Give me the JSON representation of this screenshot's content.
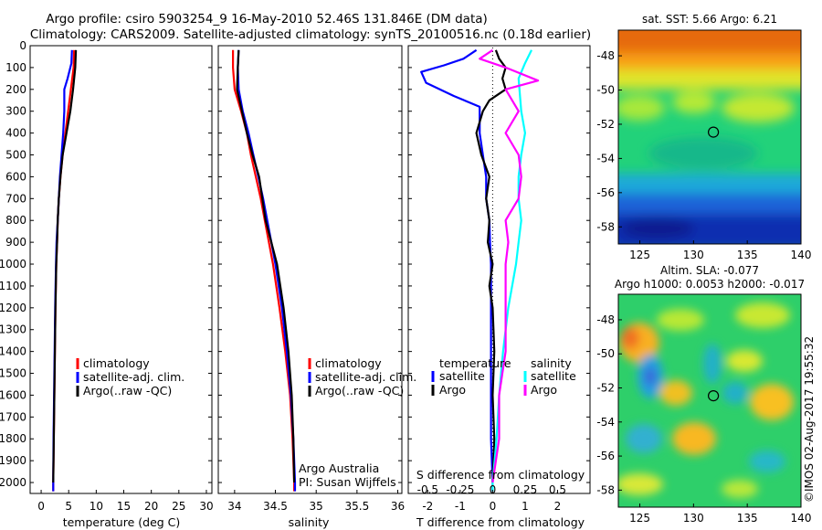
{
  "title": {
    "line1": "Argo profile: csiro 5903254_9 16-May-2010 52.46S 131.846E (DM data)",
    "line2": "Climatology: CARS2009. Satellite-adjusted climatology: synTS_20100516.nc (0.18d earlier)"
  },
  "colors": {
    "climatology": "#ff0000",
    "satellite": "#0000ff",
    "argo": "#000000",
    "salinity_satellite": "#00ffff",
    "salinity_argo": "#ff00ff",
    "marker": "#000000"
  },
  "depth_ticks": [
    "0",
    "100",
    "200",
    "300",
    "400",
    "500",
    "600",
    "700",
    "800",
    "900",
    "1000",
    "1100",
    "1200",
    "1300",
    "1400",
    "1500",
    "1600",
    "1700",
    "1800",
    "1900",
    "2000"
  ],
  "chart_data": [
    {
      "type": "line",
      "id": "temperature",
      "xlabel": "temperature (deg C)",
      "xlim": [
        -2,
        31
      ],
      "ylim": [
        2050,
        0
      ],
      "xticks": [
        "0",
        "5",
        "10",
        "15",
        "20",
        "25",
        "30"
      ],
      "legend": [
        "climatology",
        "satellite-adj. clim.",
        "Argo(..raw -QC)"
      ],
      "legend_position": "middle-right",
      "series": [
        {
          "name": "climatology",
          "points": [
            [
              6.0,
              20
            ],
            [
              5.9,
              100
            ],
            [
              5.4,
              200
            ],
            [
              4.9,
              300
            ],
            [
              4.4,
              400
            ],
            [
              3.9,
              500
            ],
            [
              3.5,
              600
            ],
            [
              3.2,
              700
            ],
            [
              3.0,
              800
            ],
            [
              2.9,
              900
            ],
            [
              2.75,
              1000
            ],
            [
              2.6,
              1200
            ],
            [
              2.5,
              1400
            ],
            [
              2.4,
              1600
            ],
            [
              2.3,
              1800
            ],
            [
              2.2,
              2000
            ],
            [
              2.2,
              2040
            ]
          ]
        },
        {
          "name": "satellite-adj. clim.",
          "points": [
            [
              5.6,
              20
            ],
            [
              5.5,
              80
            ],
            [
              4.8,
              150
            ],
            [
              4.2,
              200
            ],
            [
              4.2,
              300
            ],
            [
              4.0,
              400
            ],
            [
              3.7,
              500
            ],
            [
              3.4,
              600
            ],
            [
              3.2,
              700
            ],
            [
              3.0,
              800
            ],
            [
              2.8,
              900
            ],
            [
              2.7,
              1000
            ],
            [
              2.55,
              1200
            ],
            [
              2.45,
              1400
            ],
            [
              2.35,
              1600
            ],
            [
              2.25,
              1800
            ],
            [
              2.2,
              2000
            ],
            [
              2.2,
              2040
            ]
          ]
        },
        {
          "name": "Argo(..raw -QC)",
          "points": [
            [
              6.3,
              20
            ],
            [
              6.2,
              100
            ],
            [
              5.8,
              200
            ],
            [
              5.3,
              300
            ],
            [
              4.6,
              400
            ],
            [
              3.9,
              500
            ],
            [
              3.5,
              600
            ],
            [
              3.2,
              700
            ],
            [
              3.0,
              800
            ],
            [
              2.9,
              900
            ],
            [
              2.75,
              1000
            ],
            [
              2.6,
              1200
            ],
            [
              2.5,
              1400
            ],
            [
              2.4,
              1600
            ],
            [
              2.3,
              1800
            ],
            [
              2.2,
              2000
            ]
          ]
        }
      ]
    },
    {
      "type": "line",
      "id": "salinity",
      "xlabel": "salinity",
      "xlim": [
        33.8,
        36.05
      ],
      "ylim": [
        2050,
        0
      ],
      "xticks": [
        "34",
        "34.5",
        "35",
        "35.5",
        "36"
      ],
      "legend": [
        "climatology",
        "satellite-adj. clim.",
        "Argo(..raw -QC)"
      ],
      "legend_position": "middle-right",
      "annotation": [
        "Argo Australia",
        "PI: Susan Wijffels"
      ],
      "series": [
        {
          "name": "climatology",
          "points": [
            [
              33.98,
              20
            ],
            [
              33.98,
              100
            ],
            [
              34.0,
              200
            ],
            [
              34.08,
              300
            ],
            [
              34.15,
              400
            ],
            [
              34.2,
              500
            ],
            [
              34.26,
              600
            ],
            [
              34.32,
              700
            ],
            [
              34.37,
              800
            ],
            [
              34.42,
              900
            ],
            [
              34.47,
              1000
            ],
            [
              34.55,
              1200
            ],
            [
              34.62,
              1400
            ],
            [
              34.68,
              1600
            ],
            [
              34.71,
              1800
            ],
            [
              34.73,
              2000
            ],
            [
              34.73,
              2040
            ]
          ]
        },
        {
          "name": "satellite-adj. clim.",
          "points": [
            [
              34.05,
              20
            ],
            [
              34.04,
              100
            ],
            [
              34.05,
              200
            ],
            [
              34.1,
              300
            ],
            [
              34.17,
              400
            ],
            [
              34.23,
              500
            ],
            [
              34.29,
              600
            ],
            [
              34.35,
              700
            ],
            [
              34.4,
              800
            ],
            [
              34.45,
              900
            ],
            [
              34.5,
              1000
            ],
            [
              34.58,
              1200
            ],
            [
              34.64,
              1400
            ],
            [
              34.69,
              1600
            ],
            [
              34.72,
              1800
            ],
            [
              34.74,
              2000
            ],
            [
              34.74,
              2040
            ]
          ]
        },
        {
          "name": "Argo(..raw -QC)",
          "points": [
            [
              34.05,
              20
            ],
            [
              34.04,
              100
            ],
            [
              34.03,
              200
            ],
            [
              34.09,
              300
            ],
            [
              34.15,
              400
            ],
            [
              34.22,
              500
            ],
            [
              34.3,
              600
            ],
            [
              34.34,
              700
            ],
            [
              34.38,
              800
            ],
            [
              34.45,
              900
            ],
            [
              34.52,
              1000
            ],
            [
              34.6,
              1200
            ],
            [
              34.66,
              1400
            ],
            [
              34.7,
              1600
            ],
            [
              34.72,
              1800
            ],
            [
              34.73,
              2000
            ]
          ]
        }
      ]
    },
    {
      "type": "line",
      "id": "difference",
      "xlabel": "T difference from climatology",
      "xlabel2": "S difference from climatology",
      "xlim": [
        -2.6,
        3.0
      ],
      "ylim": [
        2050,
        0
      ],
      "xticks": [
        "-2",
        "-1",
        "0",
        "1",
        "2"
      ],
      "xticks_top": [
        "-0.5",
        "-0.25",
        "0",
        "0.25",
        "0.5"
      ],
      "legend_temperature_title": "temperature",
      "legend_salinity_title": "salinity",
      "legend_temperature": [
        "satellite",
        "Argo"
      ],
      "legend_salinity": [
        "satellite",
        "Argo"
      ],
      "legend_position": "middle",
      "series": [
        {
          "name": "temperature satellite",
          "points": [
            [
              -0.5,
              20
            ],
            [
              -0.9,
              60
            ],
            [
              -1.5,
              90
            ],
            [
              -2.2,
              120
            ],
            [
              -2.05,
              170
            ],
            [
              -1.2,
              230
            ],
            [
              -0.4,
              280
            ],
            [
              -0.4,
              330
            ],
            [
              -0.4,
              400
            ],
            [
              -0.3,
              500
            ],
            [
              -0.2,
              600
            ],
            [
              -0.2,
              700
            ],
            [
              -0.1,
              800
            ],
            [
              -0.08,
              900
            ],
            [
              -0.05,
              1000
            ],
            [
              -0.05,
              1200
            ],
            [
              -0.05,
              1400
            ],
            [
              -0.05,
              1600
            ],
            [
              -0.05,
              1800
            ],
            [
              0.0,
              2000
            ],
            [
              0.0,
              2040
            ]
          ]
        },
        {
          "name": "temperature Argo",
          "points": [
            [
              0.1,
              20
            ],
            [
              0.2,
              60
            ],
            [
              0.4,
              100
            ],
            [
              0.3,
              150
            ],
            [
              0.4,
              200
            ],
            [
              -0.1,
              250
            ],
            [
              -0.3,
              300
            ],
            [
              -0.5,
              400
            ],
            [
              -0.35,
              500
            ],
            [
              -0.1,
              600
            ],
            [
              -0.2,
              700
            ],
            [
              -0.1,
              800
            ],
            [
              -0.15,
              900
            ],
            [
              0.0,
              1000
            ],
            [
              -0.1,
              1100
            ],
            [
              0.0,
              1200
            ],
            [
              0.05,
              1400
            ],
            [
              0.0,
              1600
            ],
            [
              0.05,
              1800
            ],
            [
              0.0,
              2000
            ]
          ]
        },
        {
          "name": "salinity satellite",
          "points": [
            [
              0.3,
              20
            ],
            [
              0.25,
              80
            ],
            [
              0.2,
              150
            ],
            [
              0.22,
              300
            ],
            [
              0.25,
              400
            ],
            [
              0.22,
              500
            ],
            [
              0.2,
              600
            ],
            [
              0.2,
              700
            ],
            [
              0.22,
              800
            ],
            [
              0.2,
              900
            ],
            [
              0.18,
              1000
            ],
            [
              0.12,
              1200
            ],
            [
              0.08,
              1400
            ],
            [
              0.05,
              1600
            ],
            [
              0.03,
              1800
            ],
            [
              0.0,
              2000
            ],
            [
              0.0,
              2040
            ]
          ]
        },
        {
          "name": "salinity Argo",
          "points": [
            [
              0.0,
              20
            ],
            [
              -0.1,
              60
            ],
            [
              0.1,
              100
            ],
            [
              0.35,
              160
            ],
            [
              0.1,
              200
            ],
            [
              0.2,
              300
            ],
            [
              0.1,
              400
            ],
            [
              0.2,
              500
            ],
            [
              0.22,
              600
            ],
            [
              0.2,
              700
            ],
            [
              0.1,
              800
            ],
            [
              0.12,
              900
            ],
            [
              0.1,
              1000
            ],
            [
              0.1,
              1200
            ],
            [
              0.1,
              1400
            ],
            [
              0.05,
              1600
            ],
            [
              0.05,
              1800
            ],
            [
              0.0,
              2000
            ]
          ]
        }
      ]
    },
    {
      "type": "heatmap",
      "id": "sst_map",
      "title": "sat. SST: 5.66 Argo: 6.21",
      "xlim": [
        123,
        140
      ],
      "ylim": [
        -59,
        -46.5
      ],
      "xticks": [
        "125",
        "130",
        "135",
        "140"
      ],
      "yticks": [
        "-48",
        "-50",
        "-52",
        "-54",
        "-56",
        "-58"
      ],
      "marker": [
        131.846,
        -52.46
      ]
    },
    {
      "type": "heatmap",
      "id": "sla_map",
      "title": "Altim. SLA: -0.077",
      "subtitle": "Argo h1000: 0.0053 h2000: -0.017",
      "xlim": [
        123,
        140
      ],
      "ylim": [
        -59,
        -46.5
      ],
      "xticks": [
        "125",
        "130",
        "135",
        "140"
      ],
      "yticks": [
        "-48",
        "-50",
        "-52",
        "-54",
        "-56",
        "-58"
      ],
      "marker": [
        131.846,
        -52.46
      ]
    }
  ],
  "credit": "©IMOS 02-Aug-2017 19:55:32"
}
